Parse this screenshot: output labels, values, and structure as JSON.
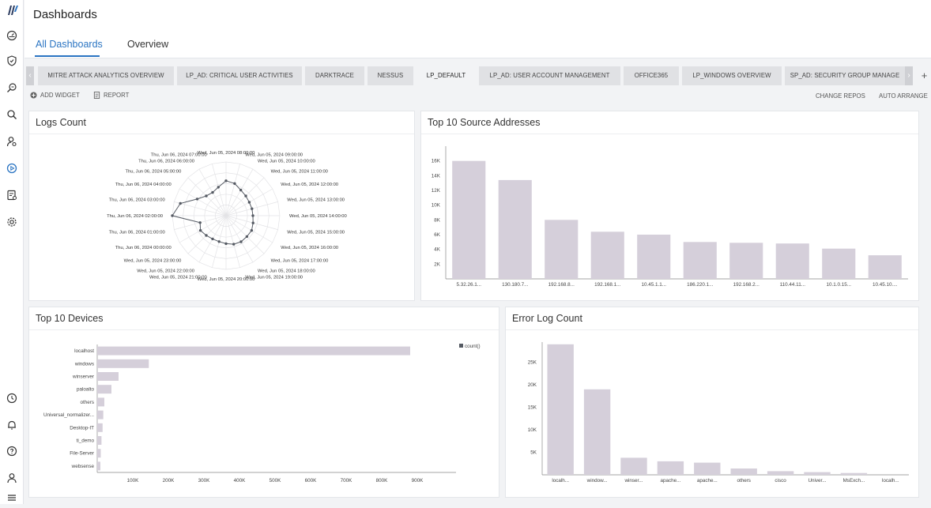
{
  "colors": {
    "accent": "#2a74c2",
    "bar": "#d5cfda",
    "radar": "#555a63"
  },
  "header": {
    "title": "Dashboards",
    "tabs": [
      {
        "label": "All Dashboards"
      },
      {
        "label": "Overview"
      }
    ]
  },
  "dashboard_tabs": [
    "MITRE ATTACK ANALYTICS OVERVIEW",
    "LP_AD: CRITICAL USER ACTIVITIES",
    "DARKTRACE",
    "NESSUS",
    "LP_DEFAULT",
    "LP_AD: USER ACCOUNT MANAGEMENT",
    "OFFICE365",
    "LP_WINDOWS OVERVIEW",
    "SP_AD: SECURITY GROUP MANAGE"
  ],
  "active_tab": "LP_DEFAULT",
  "scroll": {
    "left": "‹",
    "right": "›"
  },
  "toolbar": {
    "add_widget": "ADD WIDGET",
    "report": "REPORT",
    "change_repos": "CHANGE REPOS",
    "auto_arrange": "AUTO ARRANGE"
  },
  "sidebar_icons": [
    "logo",
    "dashboard-icon",
    "shield-icon",
    "search-log-icon",
    "search-icon",
    "user-search-icon",
    "play-circle-icon",
    "report-icon",
    "settings-icon",
    "clock-icon",
    "bell-icon",
    "help-icon",
    "user-icon",
    "list-icon"
  ],
  "chart_data": [
    {
      "type": "radar",
      "title": "Logs Count",
      "labels": [
        "Wed, Jun 05, 2024 08:00:00",
        "Wed, Jun 05, 2024 09:00:00",
        "Wed, Jun 05, 2024 10:00:00",
        "Wed, Jun 05, 2024 11:00:00",
        "Wed, Jun 05, 2024 12:00:00",
        "Wed, Jun 05, 2024 13:00:00",
        "Wed, Jun 05, 2024 14:00:00",
        "Wed, Jun 05, 2024 15:00:00",
        "Wed, Jun 05, 2024 16:00:00",
        "Wed, Jun 05, 2024 17:00:00",
        "Wed, Jun 05, 2024 18:00:00",
        "Wed, Jun 05, 2024 19:00:00",
        "Wed, Jun 05, 2024 20:00:00",
        "Wed, Jun 05, 2024 21:00:00",
        "Wed, Jun 05, 2024 22:00:00",
        "Wed, Jun 05, 2024 23:00:00",
        "Thu, Jun 06, 2024 00:00:00",
        "Thu, Jun 06, 2024 01:00:00",
        "Thu, Jun 06, 2024 02:00:00",
        "Thu, Jun 06, 2024 03:00:00",
        "Thu, Jun 06, 2024 04:00:00",
        "Thu, Jun 06, 2024 05:00:00",
        "Thu, Jun 06, 2024 06:00:00",
        "Thu, Jun 06, 2024 07:00:00"
      ],
      "values": [
        0.65,
        0.62,
        0.55,
        0.52,
        0.5,
        0.5,
        0.5,
        0.52,
        0.55,
        0.55,
        0.56,
        0.55,
        0.52,
        0.5,
        0.5,
        0.52,
        0.55,
        0.5,
        1.0,
        0.88,
        0.62,
        0.52,
        0.5,
        0.55
      ],
      "value_max": 1.0
    },
    {
      "type": "bar",
      "title": "Top 10 Source Addresses",
      "categories": [
        "5.32.26.1...",
        "130.180.7...",
        "192.168.8...",
        "192.168.1...",
        "10.45.1.1...",
        "186.220.1...",
        "192.168.2...",
        "110.44.11...",
        "10.1.0.15...",
        "10.45.10...."
      ],
      "values": [
        16000,
        13400,
        8000,
        6400,
        6000,
        5000,
        4900,
        4800,
        4100,
        3200
      ],
      "yticks": [
        2000,
        4000,
        6000,
        8000,
        10000,
        12000,
        14000,
        16000
      ],
      "ytick_labels": [
        "2K",
        "4K",
        "6K",
        "8K",
        "10K",
        "12K",
        "14K",
        "16K"
      ],
      "ylim": [
        0,
        18000
      ]
    },
    {
      "type": "bar-horizontal",
      "title": "Top 10 Devices",
      "categories": [
        "localhost",
        "windows",
        "winserver",
        "paloalto",
        "others",
        "Universal_normalizer...",
        "Desktop-IT",
        "ti_demo",
        "File-Server",
        "websense"
      ],
      "values": [
        880000,
        145000,
        60000,
        40000,
        20000,
        17000,
        15000,
        12000,
        10000,
        9000
      ],
      "xticks": [
        100000,
        200000,
        300000,
        400000,
        500000,
        600000,
        700000,
        800000,
        900000
      ],
      "xtick_labels": [
        "100K",
        "200K",
        "300K",
        "400K",
        "500K",
        "600K",
        "700K",
        "800K",
        "900K"
      ],
      "xlim": [
        0,
        1000000
      ],
      "legend": "count()"
    },
    {
      "type": "bar",
      "title": "Error Log Count",
      "categories": [
        "localh...",
        "window...",
        "winser...",
        "apache...",
        "apache...",
        "others",
        "cisco",
        "Univer...",
        "MsExch...",
        "localh..."
      ],
      "values": [
        29000,
        19000,
        3800,
        3000,
        2700,
        1400,
        800,
        600,
        400,
        0
      ],
      "yticks": [
        5000,
        10000,
        15000,
        20000,
        25000
      ],
      "ytick_labels": [
        "5K",
        "10K",
        "15K",
        "20K",
        "25K"
      ],
      "ylim": [
        0,
        29500
      ]
    }
  ]
}
